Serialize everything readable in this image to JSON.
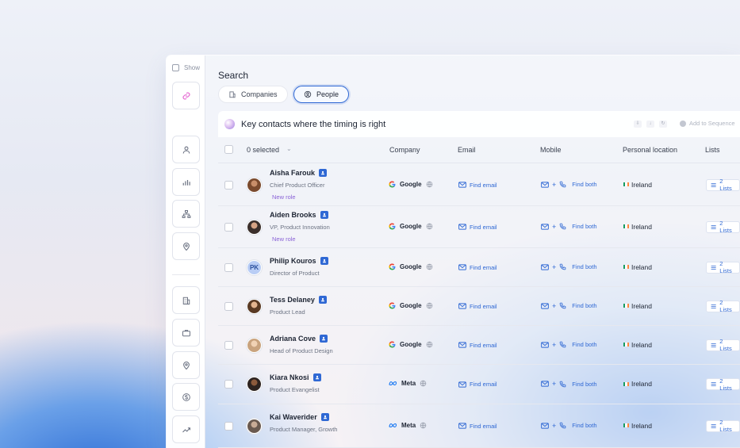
{
  "sidebar": {
    "show_label": "Show",
    "icons": [
      "link-icon",
      "person-icon",
      "bar-chart-icon",
      "org-chart-icon",
      "location-pin-icon",
      "building-icon",
      "briefcase-icon",
      "location-pin-icon",
      "dollar-icon",
      "trend-icon"
    ]
  },
  "search": {
    "title": "Search",
    "tabs": [
      {
        "label": "Companies",
        "active": false
      },
      {
        "label": "People",
        "active": true
      }
    ],
    "ai_prompt": "Key contacts where the timing is right",
    "add_to_sequence": "Add to Sequence"
  },
  "table": {
    "selected": "0 selected",
    "columns": {
      "company": "Company",
      "email": "Email",
      "mobile": "Mobile",
      "location": "Personal location",
      "lists": "Lists"
    },
    "rows": [
      {
        "name": "Aisha Farouk",
        "title": "Chief Product Officer",
        "tag": "New role",
        "company": "Google",
        "company_logo": "google-logo",
        "email_action": "Find email",
        "mobile_action": "Find both",
        "location": "Ireland",
        "lists": "2 Lists"
      },
      {
        "name": "Aiden Brooks",
        "title": "VP, Product Innovation",
        "tag": "New role",
        "company": "Google",
        "company_logo": "google-logo",
        "email_action": "Find email",
        "mobile_action": "Find both",
        "location": "Ireland",
        "lists": "2 Lists"
      },
      {
        "name": "Philip Kouros",
        "title": "Director of Product",
        "tag": "",
        "initials": "PK",
        "company": "Google",
        "company_logo": "google-logo",
        "email_action": "Find email",
        "mobile_action": "Find both",
        "location": "Ireland",
        "lists": "2 Lists"
      },
      {
        "name": "Tess Delaney",
        "title": "Product Lead",
        "tag": "",
        "company": "Google",
        "company_logo": "google-logo",
        "email_action": "Find email",
        "mobile_action": "Find both",
        "location": "Ireland",
        "lists": "2 Lists"
      },
      {
        "name": "Adriana Cove",
        "title": "Head of Product Design",
        "tag": "",
        "company": "Google",
        "company_logo": "google-logo",
        "email_action": "Find email",
        "mobile_action": "Find both",
        "location": "Ireland",
        "lists": "2 Lists"
      },
      {
        "name": "Kiara Nkosi",
        "title": "Product Evangelist",
        "tag": "",
        "company": "Meta",
        "company_logo": "meta-logo",
        "email_action": "Find email",
        "mobile_action": "Find both",
        "location": "Ireland",
        "lists": "2 Lists"
      },
      {
        "name": "Kai Waverider",
        "title": "Product Manager, Growth",
        "tag": "",
        "company": "Meta",
        "company_logo": "meta-logo",
        "email_action": "Find email",
        "mobile_action": "Find both",
        "location": "Ireland",
        "lists": "2 Lists"
      }
    ]
  },
  "colors": {
    "accent": "#2f68d4",
    "new_role": "#8a63d6",
    "flag_green": "#169b62",
    "flag_orange": "#ff883e"
  }
}
